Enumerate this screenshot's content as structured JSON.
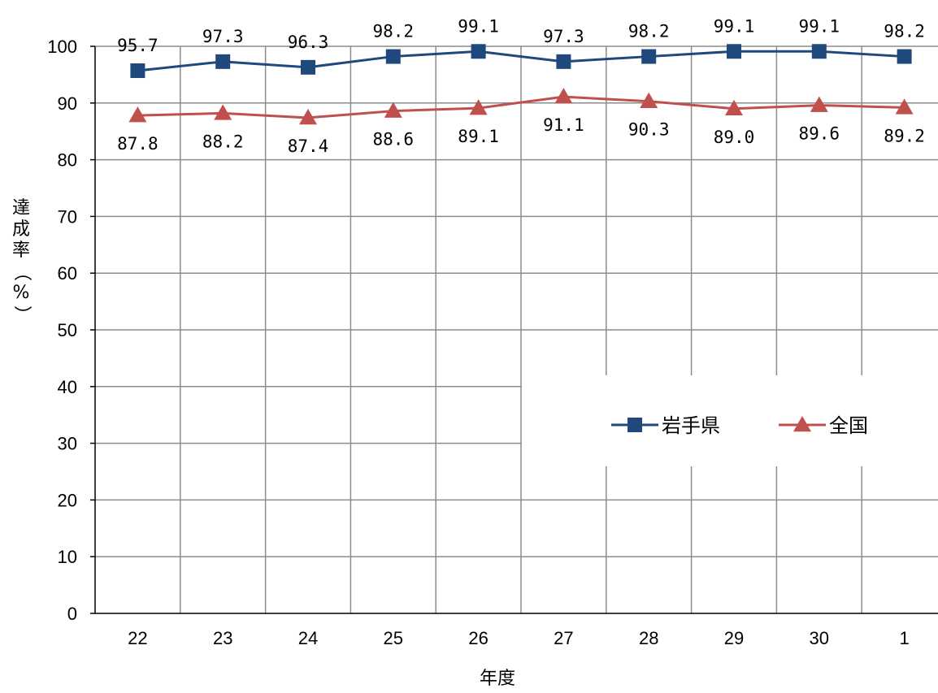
{
  "chart_data": {
    "type": "line",
    "categories": [
      "22",
      "23",
      "24",
      "25",
      "26",
      "27",
      "28",
      "29",
      "30",
      "1"
    ],
    "series": [
      {
        "name": "岩手県",
        "color": "#1F497D",
        "marker": "square",
        "values": [
          95.7,
          97.3,
          96.3,
          98.2,
          99.1,
          97.3,
          98.2,
          99.1,
          99.1,
          98.2
        ],
        "labels": [
          "95.7",
          "97.3",
          "96.3",
          "98.2",
          "99.1",
          "97.3",
          "98.2",
          "99.1",
          "99.1",
          "98.2"
        ]
      },
      {
        "name": "全国",
        "color": "#C0504D",
        "marker": "triangle",
        "values": [
          87.8,
          88.2,
          87.4,
          88.6,
          89.1,
          91.1,
          90.3,
          89.0,
          89.6,
          89.2
        ],
        "labels": [
          "87.8",
          "88.2",
          "87.4",
          "88.6",
          "89.1",
          "91.1",
          "90.3",
          "89.0",
          "89.6",
          "89.2"
        ]
      }
    ],
    "xlabel": "年度",
    "ylabel": "達成率（%）",
    "ylim": [
      0,
      100
    ],
    "yticks": [
      0,
      10,
      20,
      30,
      40,
      50,
      60,
      70,
      80,
      90,
      100
    ],
    "grid": true,
    "legend_position": "center-right"
  }
}
